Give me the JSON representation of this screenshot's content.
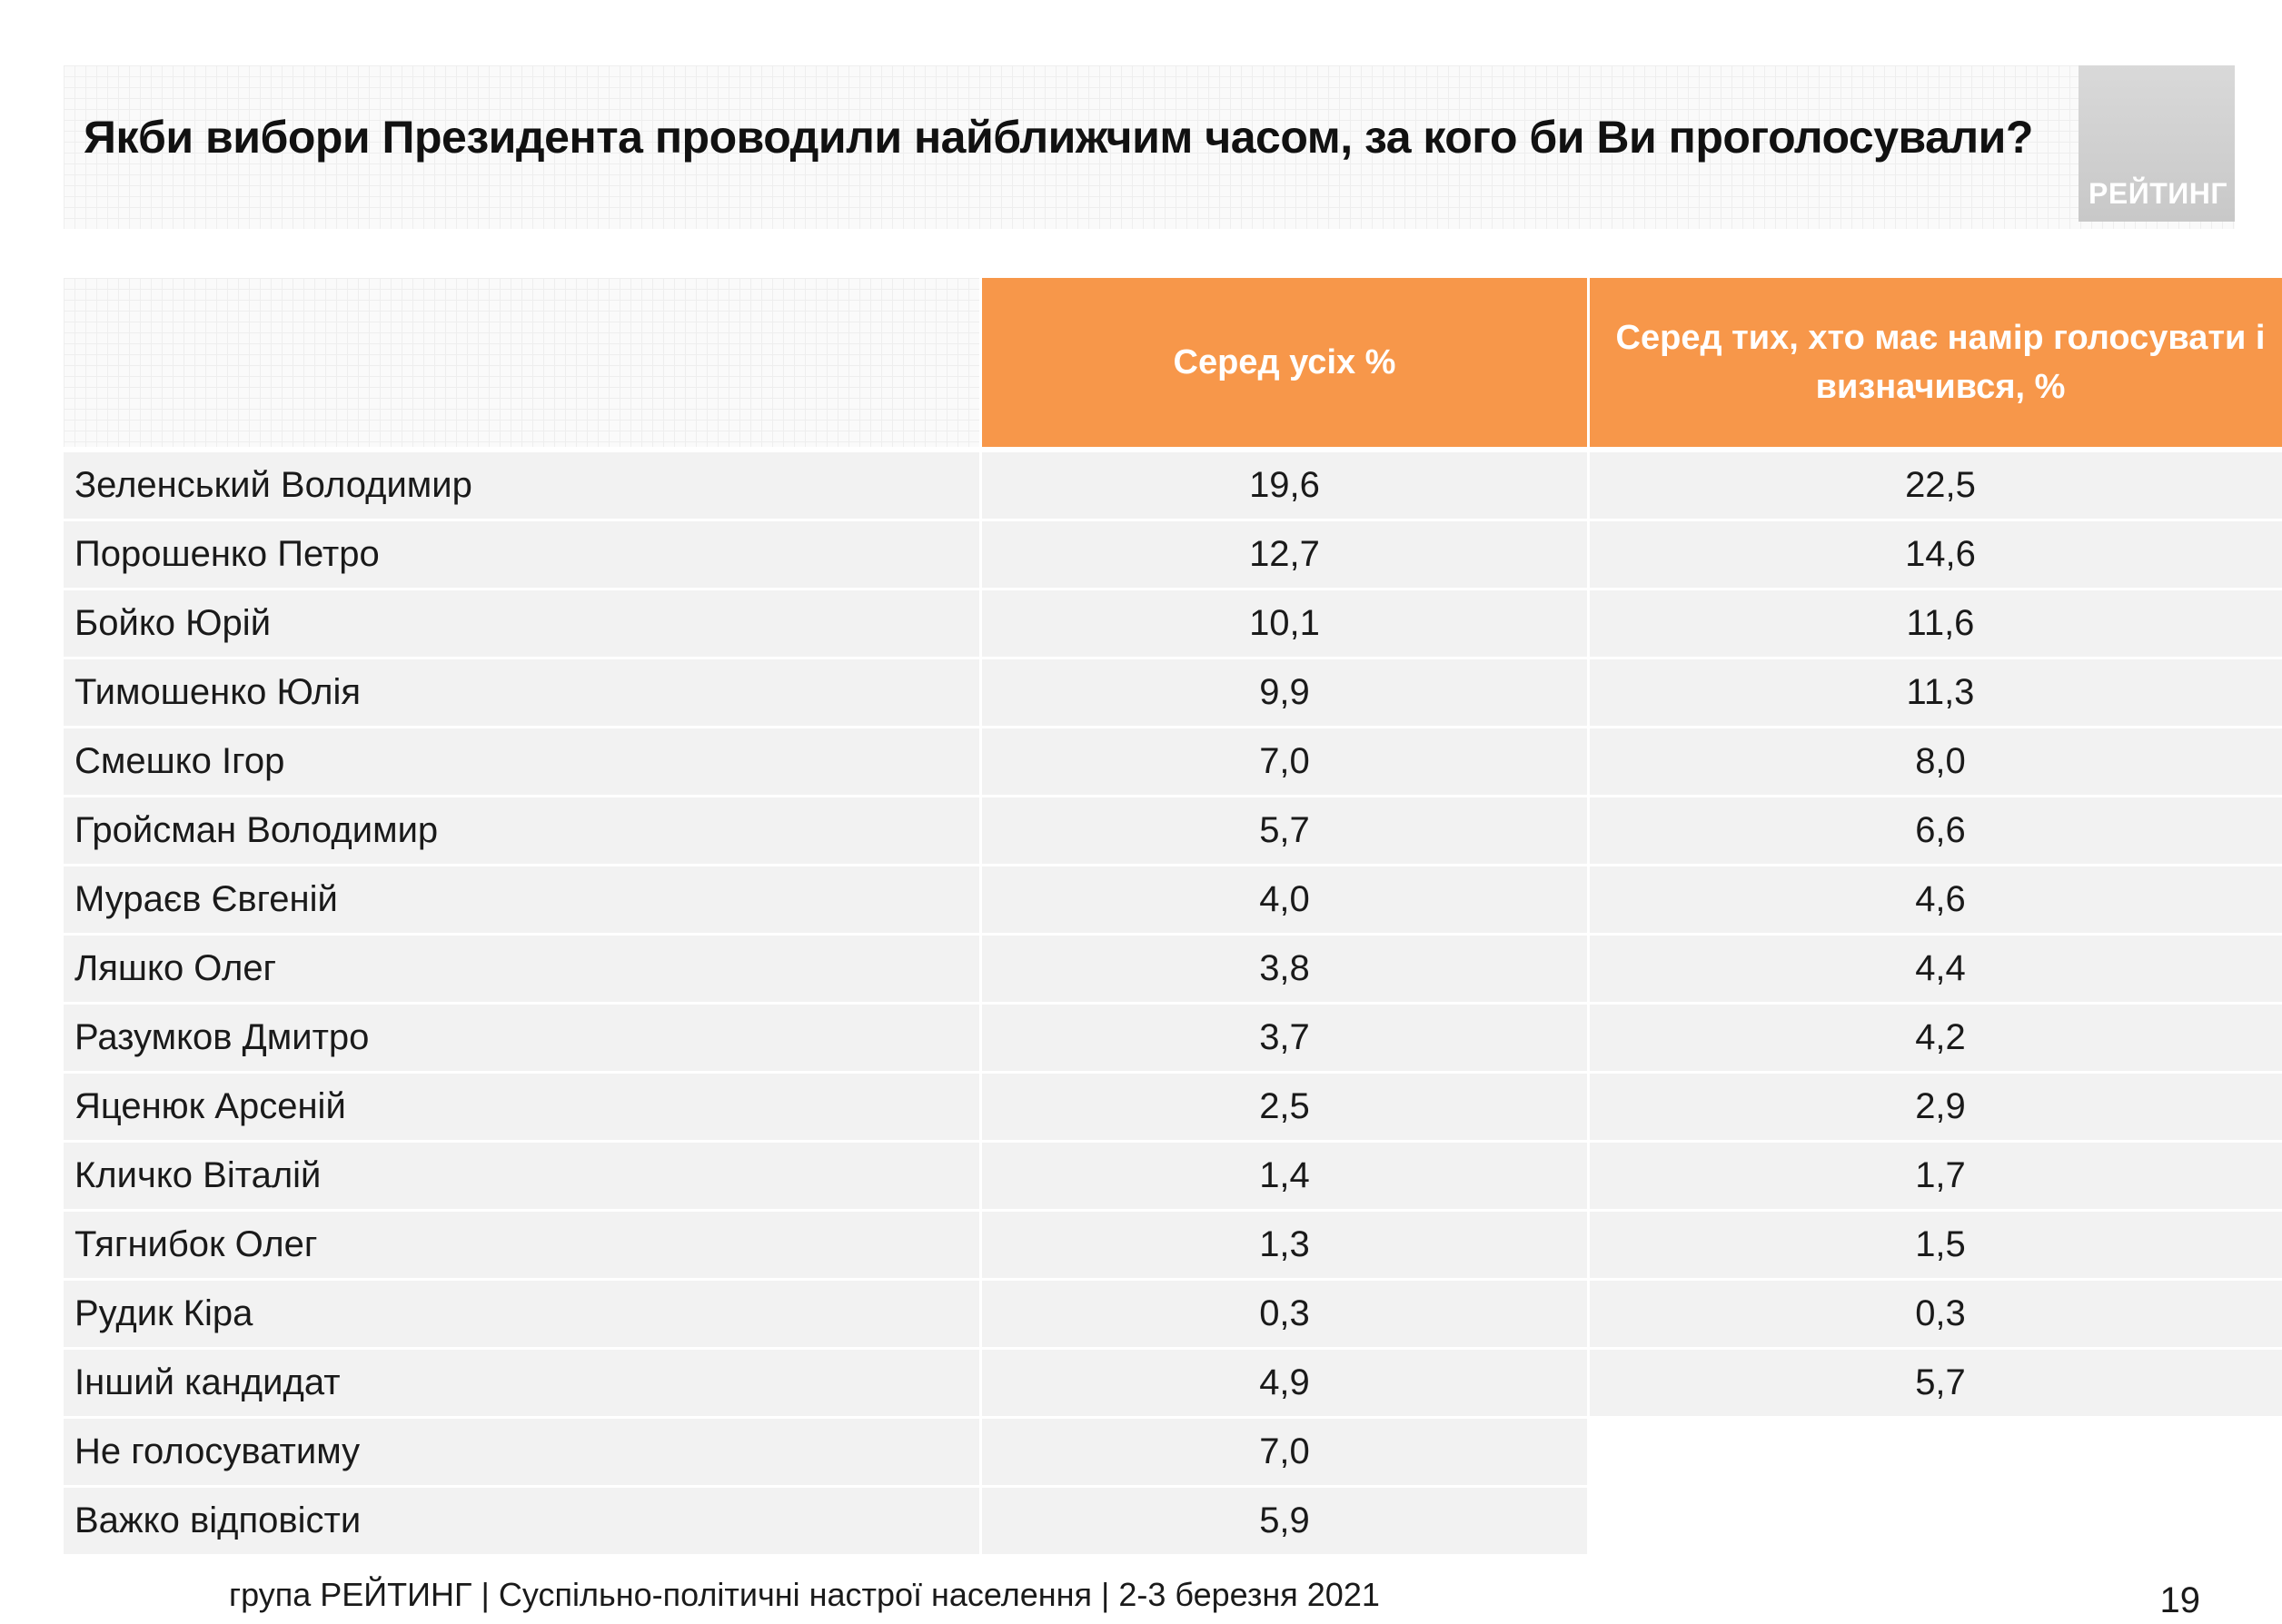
{
  "title": "Якби вибори Президента проводили найближчим часом, за кого би Ви проголосували?",
  "logo": {
    "text": "РЕЙТИНГ"
  },
  "colors": {
    "header_bg": "#f7974a",
    "header_text": "#ffffff",
    "row_bg": "#f2f2f2"
  },
  "table": {
    "columns": [
      "Серед усіх %",
      "Серед тих, хто має намір голосувати і визначився, %"
    ],
    "rows": [
      {
        "name": "Зеленський Володимир",
        "all": "19,6",
        "decided": "22,5"
      },
      {
        "name": "Порошенко Петро",
        "all": "12,7",
        "decided": "14,6"
      },
      {
        "name": "Бойко Юрій",
        "all": "10,1",
        "decided": "11,6"
      },
      {
        "name": "Тимошенко Юлія",
        "all": "9,9",
        "decided": "11,3"
      },
      {
        "name": "Смешко Ігор",
        "all": "7,0",
        "decided": "8,0"
      },
      {
        "name": "Гройсман Володимир",
        "all": "5,7",
        "decided": "6,6"
      },
      {
        "name": "Мураєв Євгеній",
        "all": "4,0",
        "decided": "4,6"
      },
      {
        "name": "Ляшко Олег",
        "all": "3,8",
        "decided": "4,4"
      },
      {
        "name": "Разумков Дмитро",
        "all": "3,7",
        "decided": "4,2"
      },
      {
        "name": "Яценюк  Арсеній",
        "all": "2,5",
        "decided": "2,9"
      },
      {
        "name": "Кличко Віталій",
        "all": "1,4",
        "decided": "1,7"
      },
      {
        "name": "Тягнибок Олег",
        "all": "1,3",
        "decided": "1,5"
      },
      {
        "name": "Рудик Кіра",
        "all": "0,3",
        "decided": "0,3"
      },
      {
        "name": "Інший кандидат",
        "all": "4,9",
        "decided": "5,7"
      },
      {
        "name": "Не голосуватиму",
        "all": "7,0",
        "decided": ""
      },
      {
        "name": "Важко відповісти",
        "all": "5,9",
        "decided": ""
      }
    ]
  },
  "footer": {
    "text": "група РЕЙТИНГ | Суспільно-політичні настрої населення  | 2-3 березня 2021"
  },
  "page_number": "19"
}
